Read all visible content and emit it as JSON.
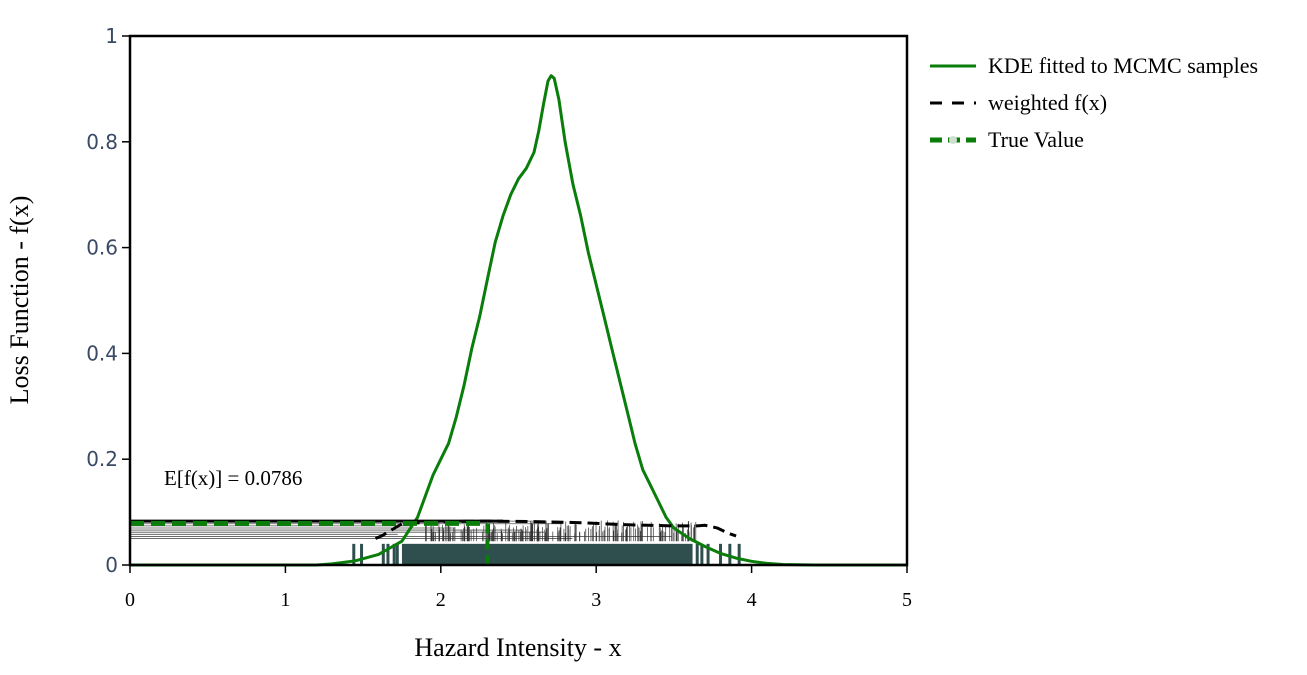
{
  "chart_data": {
    "type": "line",
    "xlabel": "Hazard Intensity - x",
    "ylabel": "Loss Function - f(x)",
    "xlim": [
      0,
      5
    ],
    "ylim": [
      0,
      1
    ],
    "x_ticks": [
      "0",
      "1",
      "2",
      "3",
      "4",
      "5"
    ],
    "y_ticks": [
      "0",
      "0.2",
      "0.4",
      "0.6",
      "0.8",
      "1"
    ],
    "grid": false,
    "legend_position": "top-right outside",
    "annotation": "E[f(x)] = 0.0786",
    "series": [
      {
        "name": "KDE fitted to MCMC samples",
        "color": "#0a7d0a",
        "style": "solid",
        "x": [
          0,
          1.2,
          1.3,
          1.45,
          1.6,
          1.75,
          1.85,
          1.9,
          1.95,
          2.0,
          2.05,
          2.1,
          2.15,
          2.2,
          2.25,
          2.3,
          2.35,
          2.4,
          2.45,
          2.5,
          2.55,
          2.6,
          2.63,
          2.66,
          2.69,
          2.71,
          2.73,
          2.76,
          2.8,
          2.85,
          2.9,
          2.95,
          3.0,
          3.05,
          3.1,
          3.15,
          3.2,
          3.25,
          3.3,
          3.35,
          3.4,
          3.45,
          3.5,
          3.6,
          3.7,
          3.8,
          3.9,
          4.0,
          4.1,
          4.2,
          4.4,
          5.0
        ],
        "y": [
          0,
          0.0,
          0.002,
          0.008,
          0.02,
          0.045,
          0.09,
          0.13,
          0.17,
          0.2,
          0.23,
          0.28,
          0.34,
          0.41,
          0.47,
          0.54,
          0.61,
          0.66,
          0.7,
          0.73,
          0.75,
          0.78,
          0.82,
          0.87,
          0.915,
          0.925,
          0.92,
          0.88,
          0.8,
          0.72,
          0.66,
          0.59,
          0.53,
          0.47,
          0.41,
          0.35,
          0.29,
          0.23,
          0.18,
          0.15,
          0.12,
          0.09,
          0.07,
          0.05,
          0.035,
          0.022,
          0.013,
          0.007,
          0.003,
          0.001,
          0.0,
          0.0
        ]
      },
      {
        "name": "weighted f(x)",
        "color": "#000000",
        "style": "dash",
        "x": [
          1.58,
          1.62,
          1.66,
          1.75,
          2.0,
          2.3,
          2.6,
          2.9,
          3.2,
          3.5,
          3.65,
          3.7,
          3.78,
          3.85,
          3.9
        ],
        "y": [
          0.05,
          0.055,
          0.062,
          0.078,
          0.082,
          0.083,
          0.082,
          0.08,
          0.076,
          0.074,
          0.074,
          0.075,
          0.07,
          0.06,
          0.055
        ]
      },
      {
        "name": "True Value",
        "color": "#0a7d0a",
        "style": "dash",
        "value_x": 2.3,
        "value_y": 0.0786
      }
    ],
    "samples_rug_x_range": [
      1.45,
      3.92
    ],
    "samples_rug_color": "#2f4f4f"
  }
}
